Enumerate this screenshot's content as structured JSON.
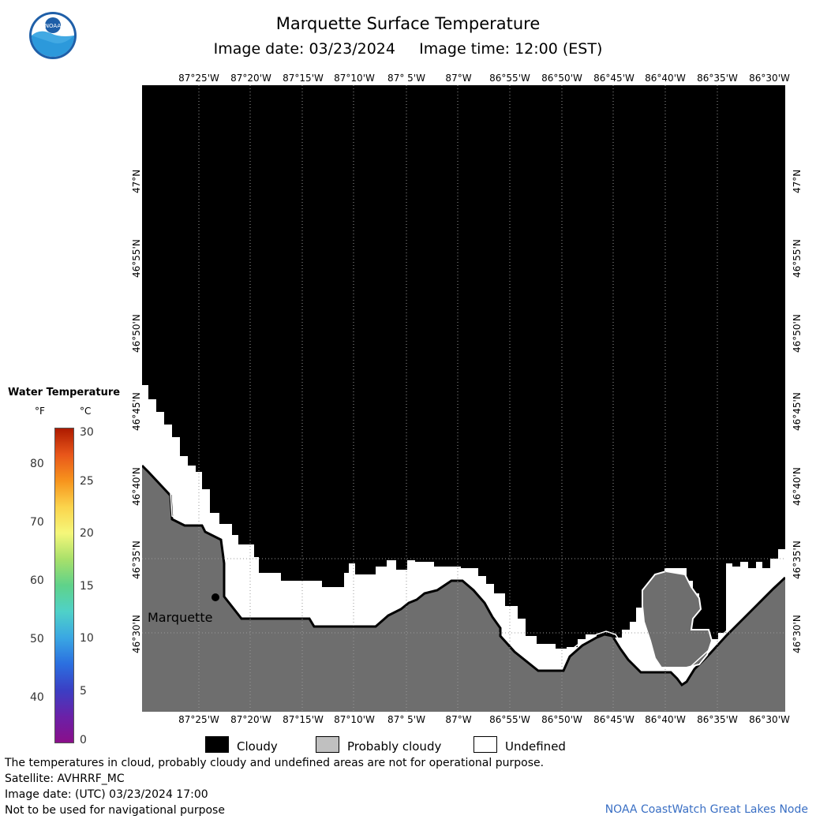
{
  "title": "Marquette Surface Temperature",
  "subtitle": "Image date: 03/23/2024     Image time: 12:00 (EST)",
  "logo_text": "NOAA",
  "longitude_labels": [
    "87°25'W",
    "87°20'W",
    "87°15'W",
    "87°10'W",
    "87° 5'W",
    "87°W",
    "86°55'W",
    "86°50'W",
    "86°45'W",
    "86°40'W",
    "86°35'W",
    "86°30'W"
  ],
  "latitude_labels": [
    "47°N",
    "46°55'N",
    "46°50'N",
    "46°45'N",
    "46°40'N",
    "46°35'N",
    "46°30'N"
  ],
  "city": {
    "name": "Marquette"
  },
  "legend": {
    "title": "Water Temperature",
    "unit_f": "°F",
    "unit_c": "°C",
    "fahrenheit_ticks": [
      "80",
      "70",
      "60",
      "50",
      "40"
    ],
    "celsius_ticks": [
      "30",
      "25",
      "20",
      "15",
      "10",
      "5",
      "0"
    ],
    "colors": [
      "#ad1a00",
      "#e8561a",
      "#f7941d",
      "#fbd44c",
      "#f5f77a",
      "#a8e06a",
      "#5fd28a",
      "#4fd1c8",
      "#3aa7e3",
      "#2b6fe0",
      "#3b3fc4",
      "#6a21a8",
      "#8a0f8a"
    ]
  },
  "key": [
    {
      "label": "Cloudy",
      "color": "#000000"
    },
    {
      "label": "Probably cloudy",
      "color": "#c0c0c0"
    },
    {
      "label": "Undefined",
      "color": "#ffffff"
    }
  ],
  "footer": {
    "line1": "The temperatures in cloud, probably cloudy and undefined areas are not for operational purpose.",
    "line2": "Satellite: AVHRRF_MC",
    "line3": "Image date: (UTC) 03/23/2024  17:00",
    "line4": "Not to be used for navigational purpose"
  },
  "credit": "NOAA CoastWatch Great Lakes Node",
  "map_colors": {
    "cloud": "#000000",
    "land": "#6e6e6e",
    "undefined": "#ffffff",
    "coast": "#000000"
  }
}
